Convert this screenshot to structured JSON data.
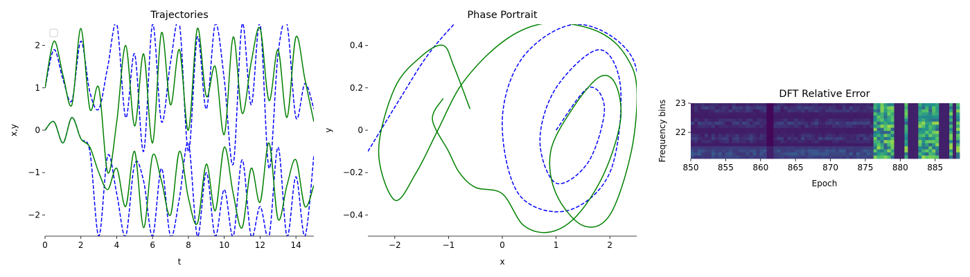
{
  "chart_data": [
    {
      "type": "line",
      "title": "Trajectories",
      "xlabel": "t",
      "ylabel": "x,y",
      "xlim": [
        0,
        15
      ],
      "ylim": [
        -2.5,
        2.5
      ],
      "xticks": [
        0,
        2,
        4,
        6,
        8,
        10,
        12,
        14
      ],
      "yticks": [
        -2,
        -1,
        0,
        1,
        2
      ],
      "grid": false,
      "legend": {
        "placement": "top-left",
        "entries": []
      },
      "series": [
        {
          "color": "#0000ff",
          "style": "dashed",
          "component": "x",
          "x": [
            0,
            0.5,
            1.0,
            1.5,
            2.0,
            2.5,
            3.0,
            3.5,
            4.0,
            4.5,
            5.0,
            5.5,
            6.0,
            6.5,
            7.0,
            7.5,
            8.0,
            8.5,
            9.0,
            9.5,
            10.0,
            10.5,
            11.0,
            11.5,
            12.0,
            12.5,
            13.0,
            13.5,
            14.0,
            14.5,
            15.0
          ],
          "y": [
            1.0,
            1.9,
            1.2,
            0.7,
            2.1,
            0.9,
            0.5,
            1.5,
            2.5,
            0.3,
            1.8,
            -0.5,
            2.5,
            0.2,
            1.6,
            2.5,
            -0.5,
            2.2,
            0.5,
            2.5,
            1.2,
            -0.8,
            2.5,
            0.6,
            2.5,
            -0.9,
            1.8,
            2.5,
            0.3,
            1.1,
            0.5
          ]
        },
        {
          "color": "#0000ff",
          "style": "dashed",
          "component": "y",
          "x": [
            0,
            0.5,
            1.0,
            1.5,
            2.0,
            2.5,
            3.0,
            3.5,
            4.0,
            4.5,
            5.0,
            5.5,
            6.0,
            6.5,
            7.0,
            7.5,
            8.0,
            8.5,
            9.0,
            9.5,
            10.0,
            10.5,
            11.0,
            11.5,
            12.0,
            12.5,
            13.0,
            13.5,
            14.0,
            14.5,
            15.0
          ],
          "y": [
            0.0,
            0.2,
            -0.3,
            0.3,
            -0.2,
            -0.5,
            -2.5,
            -0.6,
            -1.5,
            -2.5,
            -0.8,
            -1.2,
            -2.5,
            -0.9,
            -2.5,
            -1.6,
            -0.3,
            -2.5,
            -1.0,
            -2.5,
            -1.4,
            -2.5,
            -0.7,
            -2.5,
            -1.8,
            -2.5,
            -0.4,
            -2.5,
            -1.1,
            -2.5,
            -0.6
          ]
        },
        {
          "color": "#008000",
          "style": "solid",
          "component": "x",
          "x": [
            0,
            0.5,
            1.0,
            1.5,
            2.0,
            2.5,
            3.0,
            3.5,
            4.0,
            4.5,
            5.0,
            5.5,
            6.0,
            6.5,
            7.0,
            7.5,
            8.0,
            8.5,
            9.0,
            9.5,
            10.0,
            10.5,
            11.0,
            11.5,
            12.0,
            12.5,
            13.0,
            13.5,
            14.0,
            14.5,
            15.0
          ],
          "y": [
            1.0,
            2.1,
            1.3,
            0.6,
            2.4,
            0.5,
            1.0,
            -1.0,
            0.2,
            2.0,
            0.1,
            1.8,
            -0.3,
            2.3,
            0.6,
            1.9,
            0.0,
            2.4,
            0.8,
            1.5,
            -0.1,
            2.2,
            0.4,
            1.6,
            2.4,
            0.7,
            1.9,
            0.3,
            2.2,
            1.2,
            0.2
          ]
        },
        {
          "color": "#008000",
          "style": "solid",
          "component": "y",
          "x": [
            0,
            0.5,
            1.0,
            1.5,
            2.0,
            2.5,
            3.0,
            3.5,
            4.0,
            4.5,
            5.0,
            5.5,
            6.0,
            6.5,
            7.0,
            7.5,
            8.0,
            8.5,
            9.0,
            9.5,
            10.0,
            10.5,
            11.0,
            11.5,
            12.0,
            12.5,
            13.0,
            13.5,
            14.0,
            14.5,
            15.0
          ],
          "y": [
            0.0,
            0.2,
            -0.3,
            0.3,
            -0.2,
            -0.4,
            -1.0,
            -1.4,
            -0.9,
            -1.8,
            -0.5,
            -2.3,
            -0.6,
            -1.2,
            -2.0,
            -0.5,
            -1.6,
            -2.2,
            -0.8,
            -1.9,
            -0.4,
            -1.5,
            -2.3,
            -0.9,
            -1.7,
            -0.3,
            -2.1,
            -1.3,
            -0.7,
            -1.8,
            -1.3
          ]
        }
      ]
    },
    {
      "type": "line",
      "title": "Phase Portrait",
      "xlabel": "x",
      "ylabel": "y",
      "xlim": [
        -2.5,
        2.5
      ],
      "ylim": [
        -0.5,
        0.5
      ],
      "xticks": [
        -2,
        -1,
        0,
        1,
        2
      ],
      "yticks": [
        -0.4,
        -0.2,
        0.0,
        0.2,
        0.4
      ],
      "grid": false,
      "series": [
        {
          "color": "#0000ff",
          "style": "dashed",
          "x": [
            1.0,
            1.6,
            1.9,
            1.6,
            1.0,
            0.7,
            1.0,
            1.8,
            2.2,
            2.0,
            1.2,
            0.3,
            0.0,
            0.4,
            1.4,
            2.4,
            2.6
          ],
          "y": [
            0.0,
            0.2,
            0.1,
            -0.15,
            -0.25,
            -0.05,
            0.2,
            0.38,
            0.2,
            -0.2,
            -0.38,
            -0.3,
            0.05,
            0.35,
            0.5,
            0.35,
            0.0
          ]
        },
        {
          "color": "#0000ff",
          "style": "dashed",
          "x": [
            -2.5,
            -1.9,
            -1.4,
            -0.9,
            -0.5
          ],
          "y": [
            -0.1,
            0.15,
            0.35,
            0.5,
            0.6
          ]
        },
        {
          "color": "#008000",
          "style": "solid",
          "x": [
            -1.1,
            -1.3,
            -1.0,
            -0.8,
            -0.5,
            0.0,
            0.4,
            0.9,
            1.4,
            1.9,
            2.2,
            2.1,
            1.8,
            1.3,
            0.9,
            1.0,
            1.5,
            2.0,
            2.4,
            2.5,
            2.3,
            1.9,
            1.3,
            0.7,
            0.2,
            -0.3,
            -0.8,
            -1.2,
            -1.6,
            -2.0,
            -2.3,
            -2.0,
            -1.5,
            -1.1,
            -0.9,
            -0.6
          ],
          "y": [
            0.15,
            0.05,
            -0.1,
            -0.2,
            -0.27,
            -0.3,
            -0.45,
            -0.48,
            -0.4,
            -0.2,
            0.05,
            0.22,
            0.25,
            0.1,
            -0.1,
            -0.3,
            -0.45,
            -0.4,
            -0.1,
            0.2,
            0.35,
            0.45,
            0.5,
            0.5,
            0.45,
            0.35,
            0.2,
            0.0,
            -0.2,
            -0.33,
            -0.1,
            0.2,
            0.35,
            0.4,
            0.3,
            0.1
          ]
        }
      ]
    },
    {
      "type": "heatmap",
      "title": "DFT Relative Error",
      "xlabel": "Epoch",
      "ylabel": "Frequency bins",
      "xlim": [
        850,
        888.5
      ],
      "ylim": [
        21.1,
        23.0
      ],
      "xticks": [
        850,
        855,
        860,
        865,
        870,
        875,
        880,
        885
      ],
      "yticks": [
        22,
        23
      ],
      "colormap": "viridis",
      "grid": false
    }
  ]
}
